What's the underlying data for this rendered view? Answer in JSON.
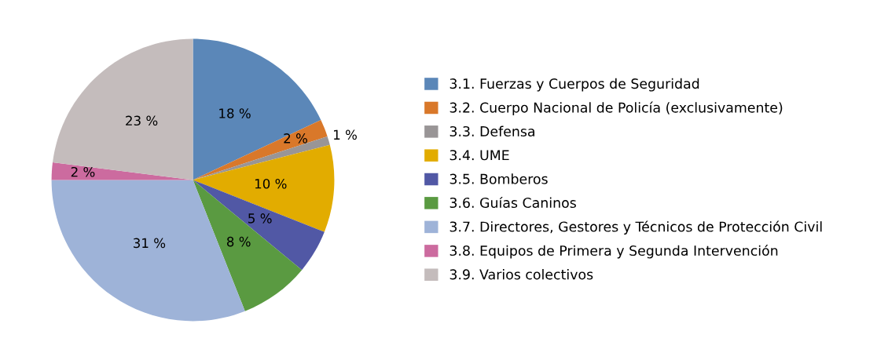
{
  "chart_data": {
    "type": "pie",
    "categories": [
      "3.1. Fuerzas y Cuerpos de Seguridad",
      "3.2. Cuerpo Nacional de Policía (exclusivamente)",
      "3.3. Defensa",
      "3.4. UME",
      "3.5. Bomberos",
      "3.6. Guías Caninos",
      "3.7. Directores, Gestores y Técnicos de Protección Civil",
      "3.8. Equipos de Primera y Segunda Intervención",
      "3.9. Varios colectivos"
    ],
    "values": [
      18,
      2,
      1,
      10,
      5,
      8,
      31,
      2,
      23
    ],
    "value_labels": [
      "18 %",
      "2 %",
      "1 %",
      "10 %",
      "5 %",
      "8 %",
      "31 %",
      "2 %",
      "23 %"
    ],
    "colors": [
      "#5b87b8",
      "#d9782a",
      "#999596",
      "#e2ac00",
      "#5158a5",
      "#5a9a41",
      "#9eb3d8",
      "#cc6b9f",
      "#c4bcbc"
    ],
    "legend": "right"
  }
}
